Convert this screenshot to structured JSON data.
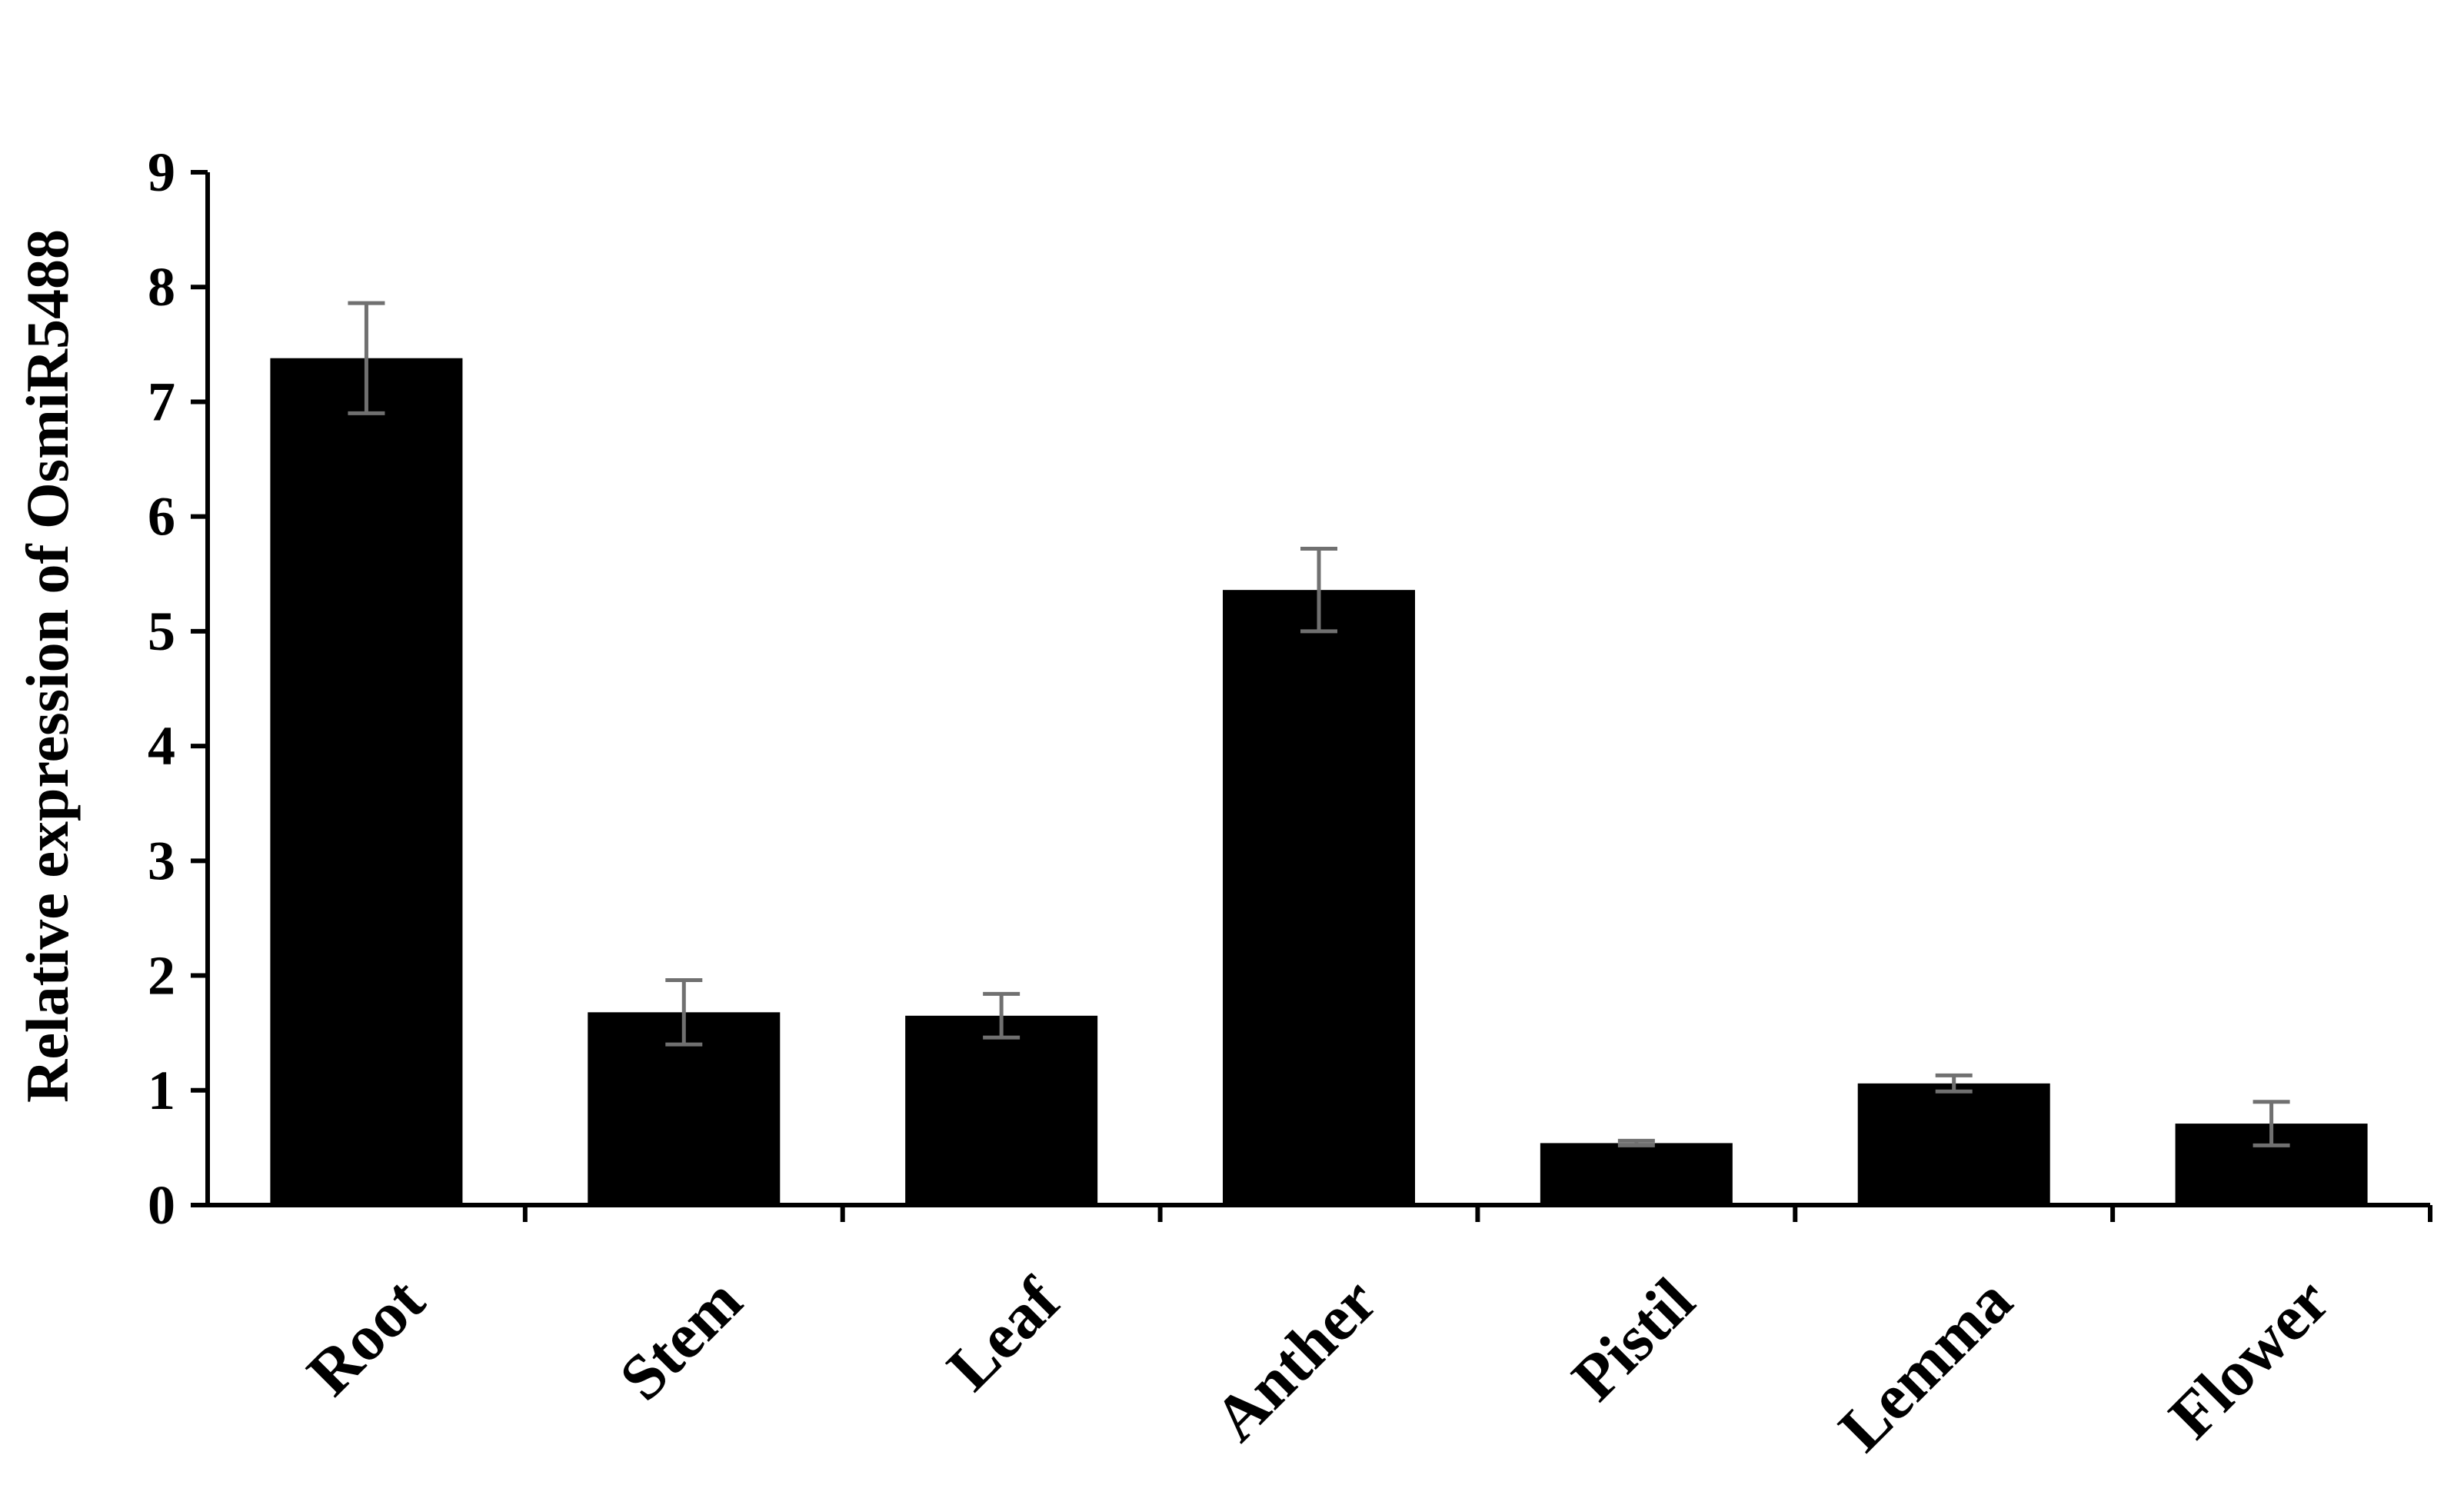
{
  "chart_data": {
    "type": "bar",
    "title": "",
    "xlabel": "",
    "ylabel": "Relative expression of OsmiR5488",
    "categories": [
      "Root",
      "Stem",
      "Leaf",
      "Anther",
      "Pistil",
      "Lemma",
      "Flower"
    ],
    "values": [
      7.38,
      1.68,
      1.65,
      5.36,
      0.54,
      1.06,
      0.71
    ],
    "errors": [
      0.48,
      0.28,
      0.19,
      0.36,
      0.02,
      0.07,
      0.19
    ],
    "ylim": [
      0,
      9
    ],
    "yticks": [
      "0",
      "1",
      "2",
      "3",
      "4",
      "5",
      "6",
      "7",
      "8",
      "9"
    ],
    "grid": false,
    "legend": "none",
    "colors": {
      "bar": "#000000",
      "error_bar": "#707070",
      "axis": "#000000"
    }
  }
}
